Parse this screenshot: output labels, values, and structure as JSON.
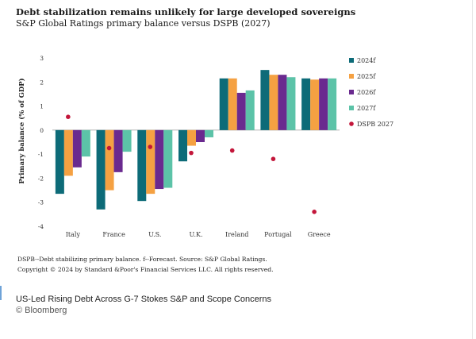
{
  "chart_data": {
    "type": "bar",
    "title": "Debt stabilization remains unlikely for large developed sovereigns",
    "subtitle": "S&P Global Ratings primary balance versus DSPB (2027)",
    "ylabel": "Primary balance (% of GDP)",
    "xlabel": "",
    "ylim": [
      -4,
      3
    ],
    "yticks": [
      3,
      2,
      1,
      0,
      -1,
      -2,
      -3,
      -4
    ],
    "categories": [
      "Italy",
      "France",
      "U.S.",
      "U.K.",
      "Ireland",
      "Portugal",
      "Greece"
    ],
    "series": [
      {
        "name": "2024f",
        "color": "#0d6b78",
        "values": [
          -2.65,
          -3.3,
          -2.95,
          -1.3,
          2.15,
          2.5,
          2.15
        ]
      },
      {
        "name": "2025f",
        "color": "#f5a142",
        "values": [
          -1.9,
          -2.5,
          -2.65,
          -0.65,
          2.15,
          2.3,
          2.1
        ]
      },
      {
        "name": "2026f",
        "color": "#6a2a8f",
        "values": [
          -1.55,
          -1.75,
          -2.45,
          -0.5,
          1.55,
          2.3,
          2.15
        ]
      },
      {
        "name": "2027f",
        "color": "#5cc3a8",
        "values": [
          -1.1,
          -0.9,
          -2.4,
          -0.3,
          1.65,
          2.2,
          2.15
        ]
      }
    ],
    "markers": {
      "name": "DSPB 2027",
      "color": "#c3163a",
      "values": [
        0.55,
        -0.75,
        -0.7,
        -0.95,
        -0.85,
        -1.2,
        -3.4
      ]
    },
    "legend_position": "right",
    "grid": false
  },
  "footnote_1": "DSPB--Debt stabilizing primary balance. f--Forecast. Source: S&P Global Ratings.",
  "footnote_2": "Copyright © 2024 by Standard &Poor's Financial Services LLC. All rights reserved.",
  "caption": "US-Led Rising Debt Across G-7 Stokes S&P and Scope Concerns",
  "credit": "© Bloomberg"
}
